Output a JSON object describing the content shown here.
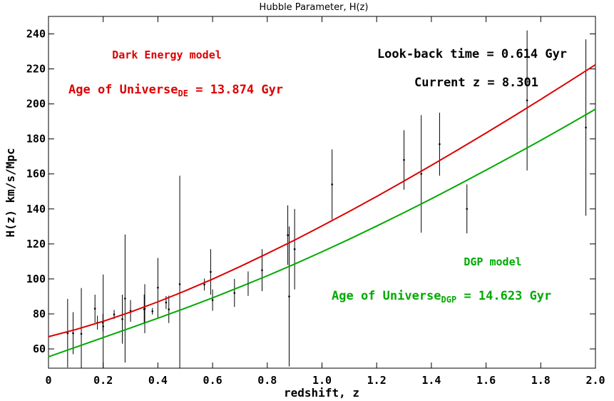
{
  "chart_data": {
    "type": "scatter",
    "title": "Hubble Parameter, H(z)",
    "xlabel": "redshift, z",
    "ylabel": "H(z) km/s/Mpc",
    "xlim": [
      0,
      2.0
    ],
    "ylim": [
      49,
      250
    ],
    "x_ticks": [
      "0",
      "0.2",
      "0.4",
      "0.6",
      "0.8",
      "1.0",
      "1.2",
      "1.4",
      "1.6",
      "1.8",
      "2.0"
    ],
    "y_ticks": [
      "60",
      "80",
      "100",
      "120",
      "140",
      "160",
      "180",
      "200",
      "220",
      "240"
    ],
    "grid": false,
    "series": [
      {
        "kind": "curve",
        "color": "#dd0000",
        "x": [
          0.0,
          0.1,
          0.2,
          0.3,
          0.4,
          0.5,
          0.6,
          0.7,
          0.8,
          0.9,
          1.0,
          1.1,
          1.2,
          1.3,
          1.4,
          1.5,
          1.6,
          1.7,
          1.8,
          1.9,
          2.0
        ],
        "y": [
          67.0,
          71.1,
          75.8,
          81.1,
          86.9,
          93.2,
          99.9,
          107.0,
          114.5,
          122.2,
          130.3,
          138.6,
          147.1,
          155.9,
          164.9,
          174.1,
          183.4,
          192.9,
          202.6,
          212.4,
          222.4
        ]
      },
      {
        "kind": "curve",
        "color": "#00aa00",
        "x": [
          0.0,
          0.1,
          0.2,
          0.3,
          0.4,
          0.5,
          0.6,
          0.7,
          0.8,
          0.9,
          1.0,
          1.1,
          1.2,
          1.3,
          1.4,
          1.5,
          1.6,
          1.7,
          1.8,
          1.9,
          2.0
        ],
        "y": [
          55.5,
          61.0,
          66.5,
          72.0,
          77.6,
          83.3,
          89.2,
          95.4,
          101.8,
          108.5,
          115.5,
          122.7,
          130.2,
          137.9,
          145.8,
          153.9,
          162.2,
          170.6,
          179.2,
          188.0,
          197.0
        ]
      },
      {
        "kind": "points",
        "color": "#000000",
        "x": [
          0.07,
          0.09,
          0.12,
          0.17,
          0.179,
          0.199,
          0.2,
          0.24,
          0.27,
          0.28,
          0.3,
          0.35,
          0.352,
          0.38,
          0.4,
          0.43,
          0.44,
          0.48,
          0.57,
          0.593,
          0.6,
          0.68,
          0.73,
          0.781,
          0.875,
          0.88,
          0.9,
          1.037,
          1.3,
          1.363,
          1.43,
          1.53,
          1.75,
          1.965
        ],
        "y": [
          69.0,
          69.0,
          68.6,
          83.0,
          75.0,
          75.0,
          72.9,
          79.7,
          77.0,
          88.8,
          81.7,
          82.7,
          83.0,
          81.5,
          95.0,
          86.5,
          82.6,
          97.0,
          96.8,
          104.0,
          87.9,
          92.0,
          97.3,
          105.0,
          125.0,
          90.0,
          117.0,
          154.0,
          168.0,
          160.0,
          177.0,
          140.0,
          202.0,
          186.5
        ],
        "yerr": [
          19.6,
          12.0,
          26.2,
          8.0,
          4.0,
          5.0,
          29.6,
          2.6,
          14.0,
          36.6,
          6.2,
          8.4,
          14.0,
          1.9,
          17.0,
          3.7,
          7.8,
          62.0,
          3.4,
          13.0,
          6.1,
          8.0,
          7.0,
          12.0,
          17.0,
          40.0,
          23.0,
          20.0,
          17.0,
          33.6,
          18.0,
          14.0,
          40.0,
          50.4
        ]
      }
    ],
    "annotations": {
      "de_model": "Dark Energy model",
      "de_age_label": "Age of Universe",
      "de_age_sub": "DE",
      "de_age_value": " = 13.874 Gyr",
      "lookback": "Look-back time = 0.614 Gyr",
      "current_z": "Current z = 8.301",
      "dgp_model": "DGP model",
      "dgp_age_label": "Age of Universe",
      "dgp_age_sub": "DGP",
      "dgp_age_value": " = 14.623 Gyr"
    },
    "colors": {
      "de": "#dd0000",
      "dgp": "#00aa00",
      "text": "#000000"
    }
  }
}
